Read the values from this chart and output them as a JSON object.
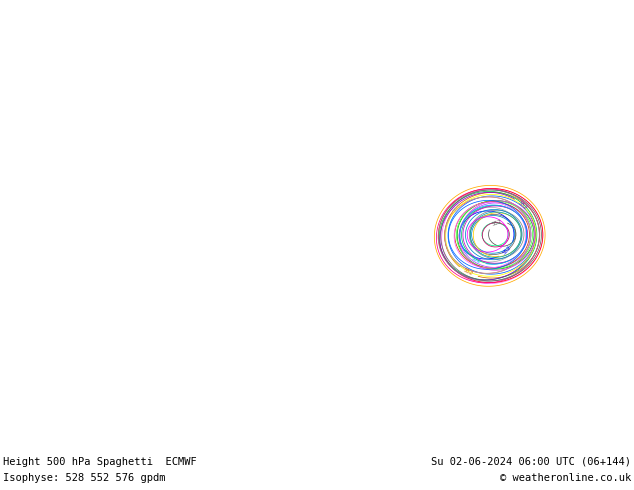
{
  "title_left": "Height 500 hPa Spaghetti  ECMWF",
  "title_right": "Su 02-06-2024 06:00 UTC (06+144)",
  "subtitle_left": "Isophyse: 528 552 576 gpdm",
  "subtitle_right": "© weatheronline.co.uk",
  "background_color": "#e8e8e8",
  "land_color": "#d4edaa",
  "ocean_color": "#e8e8e8",
  "lakes_color": "#ffffff",
  "border_color": "#888888",
  "coast_color": "#555555",
  "states_color": "#aaaaaa",
  "footer_bg": "#ffffff",
  "footer_text_color": "#000000",
  "ens_colors": [
    "#555555",
    "#888888",
    "#aaaaaa",
    "#666666",
    "#ff00ff",
    "#cc00cc",
    "#ff66ff",
    "#dd44dd",
    "#0000ff",
    "#0066ff",
    "#00aaff",
    "#44ccff",
    "#0088cc",
    "#ff8800",
    "#ffaa00",
    "#ffcc00",
    "#dd6600",
    "#00aa00",
    "#00cc44",
    "#44ff44",
    "#228822",
    "#ff0000",
    "#cc0000",
    "#ff4444",
    "#8800cc",
    "#aa44ff",
    "#6600aa",
    "#00cccc",
    "#00aaaa",
    "#44dddd",
    "#ffff00",
    "#cccc00",
    "#ff6600",
    "#cc4400",
    "#00ff88",
    "#00cc66",
    "#ff0088",
    "#cc0066"
  ],
  "map_extent": [
    -170,
    -50,
    10,
    80
  ],
  "fig_width": 6.34,
  "fig_height": 4.9,
  "dpi": 100,
  "n_members": 51,
  "isohypses": [
    528,
    552,
    576
  ]
}
